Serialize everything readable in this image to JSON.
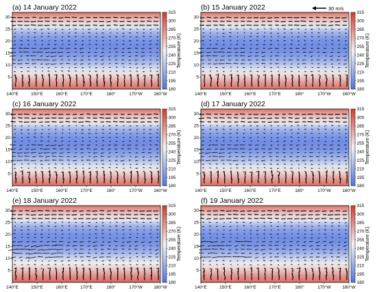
{
  "colors": {
    "cold": "#4f73e0",
    "neutral": "#f2f2f2",
    "warm": "#d33a2c",
    "vector": "#000000"
  },
  "reference_vector": {
    "label": "30 m/s",
    "magnitude": 30
  },
  "chart_data": [
    {
      "type": "heatmap",
      "panel": "a",
      "title": "(a) 14 January 2022",
      "x_ticks": [
        "140°E",
        "150°E",
        "160°E",
        "170°E",
        "180°",
        "170°W",
        "160°W"
      ],
      "y_ticks": [
        5,
        10,
        15,
        20,
        25,
        30
      ],
      "ylim": [
        0,
        32
      ],
      "colorbar": {
        "label": "Temperature (K)",
        "ticks": [
          180,
          195,
          210,
          225,
          240,
          255,
          270,
          285,
          300,
          315
        ],
        "range": [
          180,
          315
        ]
      },
      "temperature_profile": [
        [
          0,
          296
        ],
        [
          2,
          285
        ],
        [
          4,
          270
        ],
        [
          6,
          255
        ],
        [
          8,
          240
        ],
        [
          10,
          225
        ],
        [
          12,
          212
        ],
        [
          14,
          202
        ],
        [
          16,
          196
        ],
        [
          18,
          194
        ],
        [
          20,
          197
        ],
        [
          22,
          205
        ],
        [
          24,
          218
        ],
        [
          26,
          242
        ],
        [
          28,
          258
        ],
        [
          30,
          275
        ],
        [
          32,
          295
        ]
      ],
      "storm_level": 0.5
    },
    {
      "type": "heatmap",
      "panel": "b",
      "title": "(b) 15 January 2022",
      "x_ticks": [
        "140°E",
        "150°E",
        "160°E",
        "170°E",
        "180°",
        "170°W",
        "160°W"
      ],
      "y_ticks": [
        5,
        10,
        15,
        20,
        25,
        30
      ],
      "ylim": [
        0,
        32
      ],
      "colorbar": {
        "label": "Temperature (K)",
        "ticks": [
          180,
          195,
          210,
          225,
          240,
          255,
          270,
          285,
          300,
          315
        ],
        "range": [
          180,
          315
        ]
      },
      "temperature_profile": [
        [
          0,
          296
        ],
        [
          2,
          285
        ],
        [
          4,
          270
        ],
        [
          6,
          255
        ],
        [
          8,
          240
        ],
        [
          10,
          225
        ],
        [
          12,
          212
        ],
        [
          14,
          202
        ],
        [
          16,
          196
        ],
        [
          18,
          194
        ],
        [
          20,
          197
        ],
        [
          22,
          205
        ],
        [
          24,
          218
        ],
        [
          26,
          242
        ],
        [
          28,
          258
        ],
        [
          30,
          275
        ],
        [
          32,
          295
        ]
      ],
      "storm_level": 0.5
    },
    {
      "type": "heatmap",
      "panel": "c",
      "title": "(c) 16 January 2022",
      "x_ticks": [
        "140°E",
        "150°E",
        "160°E",
        "170°E",
        "180°",
        "170°W",
        "160°W"
      ],
      "y_ticks": [
        5,
        10,
        15,
        20,
        25,
        30
      ],
      "ylim": [
        0,
        32
      ],
      "colorbar": {
        "label": "Temperature (K)",
        "ticks": [
          180,
          195,
          210,
          225,
          240,
          255,
          270,
          285,
          300,
          315
        ],
        "range": [
          180,
          315
        ]
      },
      "temperature_profile": [
        [
          0,
          296
        ],
        [
          2,
          285
        ],
        [
          4,
          270
        ],
        [
          6,
          255
        ],
        [
          8,
          240
        ],
        [
          10,
          225
        ],
        [
          12,
          212
        ],
        [
          14,
          202
        ],
        [
          16,
          196
        ],
        [
          18,
          194
        ],
        [
          20,
          197
        ],
        [
          22,
          205
        ],
        [
          24,
          218
        ],
        [
          26,
          242
        ],
        [
          28,
          258
        ],
        [
          30,
          275
        ],
        [
          32,
          295
        ]
      ],
      "storm_level": 0.6
    },
    {
      "type": "heatmap",
      "panel": "d",
      "title": "(d) 17 January 2022",
      "x_ticks": [
        "140°E",
        "150°E",
        "160°E",
        "170°E",
        "180°",
        "170°W",
        "160°W"
      ],
      "y_ticks": [
        5,
        10,
        15,
        20,
        25,
        30
      ],
      "ylim": [
        0,
        32
      ],
      "colorbar": {
        "label": "Temperature (K)",
        "ticks": [
          180,
          195,
          210,
          225,
          240,
          255,
          270,
          285,
          300,
          315
        ],
        "range": [
          180,
          315
        ]
      },
      "temperature_profile": [
        [
          0,
          296
        ],
        [
          2,
          285
        ],
        [
          4,
          270
        ],
        [
          6,
          255
        ],
        [
          8,
          240
        ],
        [
          10,
          225
        ],
        [
          12,
          212
        ],
        [
          14,
          202
        ],
        [
          16,
          196
        ],
        [
          18,
          194
        ],
        [
          20,
          197
        ],
        [
          22,
          205
        ],
        [
          24,
          218
        ],
        [
          26,
          242
        ],
        [
          28,
          258
        ],
        [
          30,
          275
        ],
        [
          32,
          295
        ]
      ],
      "storm_level": 0.5
    },
    {
      "type": "heatmap",
      "panel": "e",
      "title": "(e) 18 January 2022",
      "x_ticks": [
        "140°E",
        "150°E",
        "160°E",
        "170°E",
        "180°",
        "170°W",
        "160°W"
      ],
      "y_ticks": [
        5,
        10,
        15,
        20,
        25,
        30
      ],
      "ylim": [
        0,
        32
      ],
      "colorbar": {
        "label": "Temperature (K)",
        "ticks": [
          180,
          195,
          210,
          225,
          240,
          255,
          270,
          285,
          300,
          315
        ],
        "range": [
          180,
          315
        ]
      },
      "temperature_profile": [
        [
          0,
          298
        ],
        [
          2,
          288
        ],
        [
          4,
          274
        ],
        [
          6,
          260
        ],
        [
          8,
          246
        ],
        [
          10,
          232
        ],
        [
          12,
          218
        ],
        [
          14,
          206
        ],
        [
          16,
          198
        ],
        [
          18,
          195
        ],
        [
          20,
          197
        ],
        [
          22,
          205
        ],
        [
          24,
          218
        ],
        [
          26,
          242
        ],
        [
          28,
          258
        ],
        [
          30,
          275
        ],
        [
          32,
          295
        ]
      ],
      "storm_level": 1.0
    },
    {
      "type": "heatmap",
      "panel": "f",
      "title": "(f) 19 January 2022",
      "x_ticks": [
        "140°E",
        "150°E",
        "160°E",
        "170°E",
        "180°",
        "170°W",
        "160°W"
      ],
      "y_ticks": [
        5,
        10,
        15,
        20,
        25,
        30
      ],
      "ylim": [
        0,
        32
      ],
      "colorbar": {
        "label": "Temperature (K)",
        "ticks": [
          180,
          195,
          210,
          225,
          240,
          255,
          270,
          285,
          300,
          315
        ],
        "range": [
          180,
          315
        ]
      },
      "temperature_profile": [
        [
          0,
          296
        ],
        [
          2,
          286
        ],
        [
          4,
          272
        ],
        [
          6,
          258
        ],
        [
          8,
          244
        ],
        [
          10,
          230
        ],
        [
          12,
          216
        ],
        [
          14,
          204
        ],
        [
          16,
          197
        ],
        [
          18,
          194
        ],
        [
          20,
          197
        ],
        [
          22,
          205
        ],
        [
          24,
          218
        ],
        [
          26,
          242
        ],
        [
          28,
          258
        ],
        [
          30,
          275
        ],
        [
          32,
          295
        ]
      ],
      "storm_level": 0.8
    }
  ]
}
